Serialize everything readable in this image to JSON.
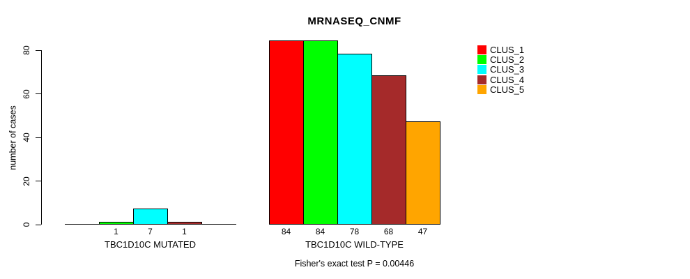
{
  "title": "MRNASEQ_CNMF",
  "y_axis": {
    "label": "number of cases",
    "ticks": [
      0,
      20,
      40,
      60,
      80
    ]
  },
  "footer": "Fisher's exact test P = 0.00446",
  "legend": {
    "items": [
      {
        "label": "CLUS_1",
        "color": "#FF0000"
      },
      {
        "label": "CLUS_2",
        "color": "#00FF00"
      },
      {
        "label": "CLUS_3",
        "color": "#00FFFF"
      },
      {
        "label": "CLUS_4",
        "color": "#A52A2A"
      },
      {
        "label": "CLUS_5",
        "color": "#FFA500"
      }
    ]
  },
  "chart_data": {
    "type": "bar",
    "title": "MRNASEQ_CNMF",
    "ylabel": "number of cases",
    "ylim": [
      0,
      80
    ],
    "yticks": [
      0,
      20,
      40,
      60,
      80
    ],
    "grid": false,
    "legend_position": "top-right",
    "bar_border_color": "#000000",
    "clusters": [
      {
        "name": "CLUS_1",
        "color": "#FF0000"
      },
      {
        "name": "CLUS_2",
        "color": "#00FF00"
      },
      {
        "name": "CLUS_3",
        "color": "#00FFFF"
      },
      {
        "name": "CLUS_4",
        "color": "#A52A2A"
      },
      {
        "name": "CLUS_5",
        "color": "#FFA500"
      }
    ],
    "groups": [
      {
        "label": "TBC1D10C MUTATED",
        "values": [
          0,
          1,
          7,
          1,
          0
        ],
        "bar_labels": [
          "",
          "1",
          "7",
          "1",
          ""
        ]
      },
      {
        "label": "TBC1D10C WILD-TYPE",
        "values": [
          84,
          84,
          78,
          68,
          47
        ],
        "bar_labels": [
          "84",
          "84",
          "78",
          "68",
          "47"
        ]
      }
    ],
    "annotation": "Fisher's exact test P = 0.00446"
  }
}
